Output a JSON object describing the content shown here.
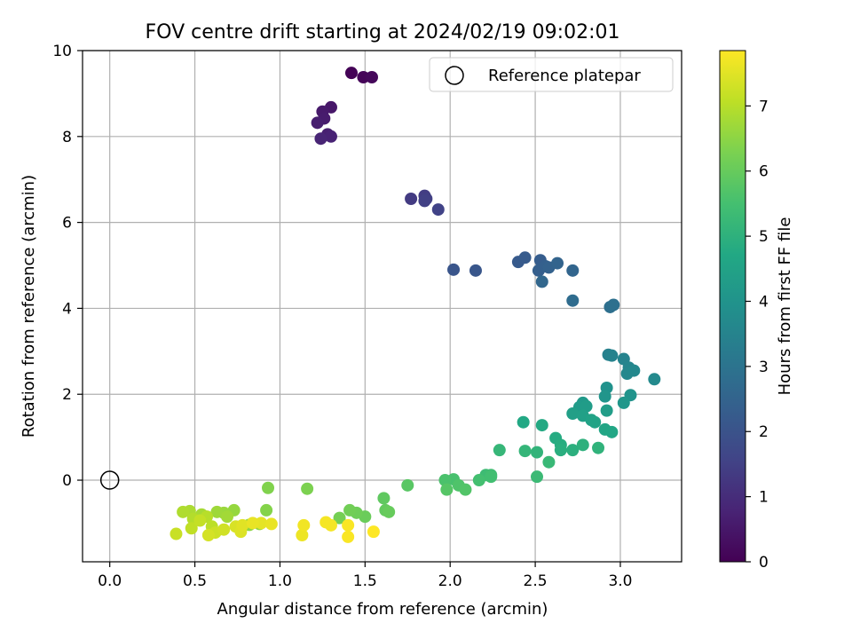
{
  "chart_data": {
    "type": "scatter",
    "title": "FOV centre drift starting at 2024/02/19 09:02:01",
    "xlabel": "Angular distance from reference (arcmin)",
    "ylabel": "Rotation from reference (arcmin)",
    "xlim": [
      -0.16,
      3.36
    ],
    "ylim": [
      -1.9,
      10.0
    ],
    "xticks": [
      "0.0",
      "0.5",
      "1.0",
      "1.5",
      "2.0",
      "2.5",
      "3.0"
    ],
    "yticks": [
      "0",
      "2",
      "4",
      "6",
      "8",
      "10"
    ],
    "grid": true,
    "legend": {
      "position": "top-right",
      "entries": [
        "Reference platepar"
      ]
    },
    "colorbar": {
      "label": "Hours from first FF file",
      "range": [
        0,
        7.85
      ],
      "ticks": [
        "0",
        "1",
        "2",
        "3",
        "4",
        "5",
        "6",
        "7"
      ],
      "colormap": "viridis"
    },
    "reference_point": {
      "x": 0.0,
      "y": 0.0,
      "name": "Reference platepar"
    },
    "series": [
      {
        "points": [
          [
            1.42,
            9.48,
            0.05
          ],
          [
            1.49,
            9.38,
            0.1
          ],
          [
            1.54,
            9.38,
            0.15
          ],
          [
            1.3,
            8.68,
            0.5
          ],
          [
            1.25,
            8.58,
            0.55
          ],
          [
            1.26,
            8.42,
            0.6
          ],
          [
            1.22,
            8.32,
            0.65
          ],
          [
            1.28,
            8.05,
            0.7
          ],
          [
            1.3,
            8.0,
            0.75
          ],
          [
            1.24,
            7.95,
            0.8
          ],
          [
            1.77,
            6.55,
            1.35
          ],
          [
            1.85,
            6.62,
            1.4
          ],
          [
            1.86,
            6.55,
            1.45
          ],
          [
            1.85,
            6.5,
            1.5
          ],
          [
            1.93,
            6.3,
            1.55
          ],
          [
            2.02,
            4.9,
            2.05
          ],
          [
            2.15,
            4.88,
            2.1
          ],
          [
            2.4,
            5.08,
            2.2
          ],
          [
            2.44,
            5.18,
            2.25
          ],
          [
            2.53,
            5.12,
            2.3
          ],
          [
            2.52,
            4.88,
            2.35
          ],
          [
            2.56,
            4.98,
            2.4
          ],
          [
            2.58,
            4.95,
            2.45
          ],
          [
            2.63,
            5.05,
            2.5
          ],
          [
            2.72,
            4.88,
            2.55
          ],
          [
            2.54,
            4.62,
            2.6
          ],
          [
            2.72,
            4.18,
            2.75
          ],
          [
            2.94,
            4.03,
            2.85
          ],
          [
            2.96,
            4.08,
            2.9
          ],
          [
            2.93,
            2.92,
            3.4
          ],
          [
            2.95,
            2.9,
            3.45
          ],
          [
            3.02,
            2.82,
            3.5
          ],
          [
            3.05,
            2.62,
            3.55
          ],
          [
            3.04,
            2.48,
            3.6
          ],
          [
            3.08,
            2.55,
            3.65
          ],
          [
            3.2,
            2.35,
            3.7
          ],
          [
            2.92,
            2.15,
            3.95
          ],
          [
            3.06,
            1.98,
            4.0
          ],
          [
            2.91,
            1.95,
            4.05
          ],
          [
            3.02,
            1.8,
            4.1
          ],
          [
            2.78,
            1.8,
            4.2
          ],
          [
            2.76,
            1.7,
            4.25
          ],
          [
            2.8,
            1.72,
            4.3
          ],
          [
            2.92,
            1.62,
            4.35
          ],
          [
            2.72,
            1.55,
            4.4
          ],
          [
            2.78,
            1.5,
            4.45
          ],
          [
            2.83,
            1.4,
            4.5
          ],
          [
            2.85,
            1.35,
            4.55
          ],
          [
            2.91,
            1.18,
            4.6
          ],
          [
            2.95,
            1.12,
            4.65
          ],
          [
            2.43,
            1.35,
            4.7
          ],
          [
            2.54,
            1.28,
            4.75
          ],
          [
            2.62,
            0.98,
            4.8
          ],
          [
            2.65,
            0.82,
            4.85
          ],
          [
            2.65,
            0.7,
            4.9
          ],
          [
            2.72,
            0.7,
            4.95
          ],
          [
            2.78,
            0.82,
            5.0
          ],
          [
            2.87,
            0.75,
            5.05
          ],
          [
            2.51,
            0.65,
            5.1
          ],
          [
            2.44,
            0.68,
            5.15
          ],
          [
            2.29,
            0.7,
            5.2
          ],
          [
            2.58,
            0.42,
            5.25
          ],
          [
            2.51,
            0.08,
            5.3
          ],
          [
            2.21,
            0.12,
            5.35
          ],
          [
            2.24,
            0.12,
            5.4
          ],
          [
            2.24,
            0.08,
            5.45
          ],
          [
            2.17,
            0.0,
            5.5
          ],
          [
            2.02,
            0.02,
            5.55
          ],
          [
            1.97,
            0.0,
            5.6
          ],
          [
            2.05,
            -0.12,
            5.65
          ],
          [
            2.09,
            -0.22,
            5.7
          ],
          [
            1.98,
            -0.22,
            5.75
          ],
          [
            1.75,
            -0.12,
            5.8
          ],
          [
            1.61,
            -0.42,
            5.9
          ],
          [
            1.62,
            -0.7,
            5.95
          ],
          [
            1.64,
            -0.74,
            6.0
          ],
          [
            1.5,
            -0.85,
            6.05
          ],
          [
            1.45,
            -0.76,
            6.1
          ],
          [
            1.41,
            -0.7,
            6.15
          ],
          [
            1.35,
            -0.88,
            6.2
          ],
          [
            1.16,
            -0.2,
            6.3
          ],
          [
            0.93,
            -0.18,
            6.35
          ],
          [
            0.92,
            -0.7,
            6.4
          ],
          [
            0.82,
            -1.04,
            6.5
          ],
          [
            0.88,
            -1.02,
            6.55
          ],
          [
            0.73,
            -0.7,
            6.6
          ],
          [
            0.67,
            -0.76,
            6.65
          ],
          [
            0.63,
            -0.74,
            6.7
          ],
          [
            0.69,
            -0.85,
            6.75
          ],
          [
            0.54,
            -0.8,
            6.8
          ],
          [
            0.47,
            -0.72,
            6.85
          ],
          [
            0.43,
            -0.74,
            6.9
          ],
          [
            0.49,
            -0.9,
            6.95
          ],
          [
            0.57,
            -0.85,
            7.0
          ],
          [
            0.6,
            -1.08,
            7.05
          ],
          [
            0.48,
            -1.12,
            7.1
          ],
          [
            0.53,
            -0.94,
            7.15
          ],
          [
            0.39,
            -1.25,
            7.2
          ],
          [
            0.62,
            -1.22,
            7.25
          ],
          [
            0.67,
            -1.15,
            7.3
          ],
          [
            0.58,
            -1.28,
            7.35
          ],
          [
            0.74,
            -1.08,
            7.4
          ],
          [
            0.77,
            -1.2,
            7.45
          ],
          [
            0.78,
            -1.05,
            7.5
          ],
          [
            0.89,
            -1.0,
            7.55
          ],
          [
            0.95,
            -1.02,
            7.6
          ],
          [
            0.84,
            -1.0,
            7.6
          ],
          [
            1.13,
            -1.28,
            7.65
          ],
          [
            1.14,
            -1.05,
            7.7
          ],
          [
            1.27,
            -0.98,
            7.75
          ],
          [
            1.3,
            -1.05,
            7.75
          ],
          [
            1.4,
            -1.05,
            7.8
          ],
          [
            1.4,
            -1.32,
            7.8
          ],
          [
            1.55,
            -1.2,
            7.85
          ]
        ]
      }
    ]
  }
}
